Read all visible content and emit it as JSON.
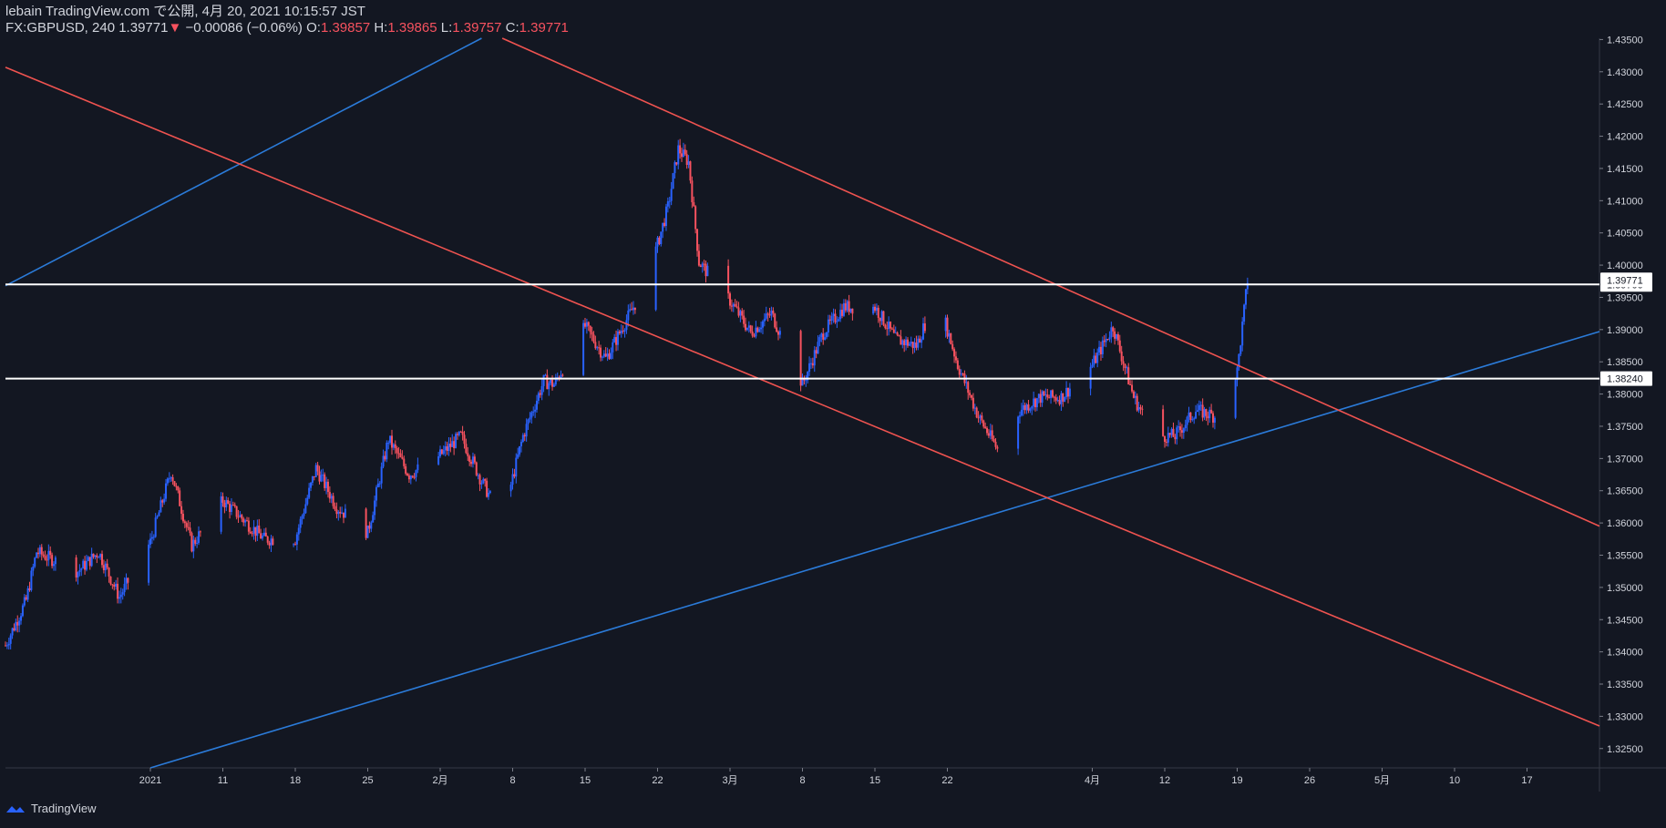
{
  "header": {
    "publish_line": "lebain TradingView.com で公開, 4月 20, 2021 10:15:57 JST",
    "symbol": "FX:GBPUSD, 240",
    "last": "1.39771",
    "change": "−0.00086 (−0.06%)",
    "o_label": "O:",
    "o_value": "1.39857",
    "h_label": "H:",
    "h_value": "1.39865",
    "l_label": "L:",
    "l_value": "1.39757",
    "c_label": "C:",
    "c_value": "1.39771"
  },
  "footer": {
    "brand": "TradingView"
  },
  "colors": {
    "bg": "#131722",
    "up": "#2962ff",
    "down": "#f7525f",
    "hline": "#ffffff",
    "blue_line": "#2b7bd9",
    "red_line": "#ef5350"
  },
  "chart_data": {
    "type": "candlestick",
    "symbol": "GBPUSD",
    "timeframe": "240",
    "ylim": [
      1.322,
      1.4352
    ],
    "y_ticks": [
      "1.43500",
      "1.43000",
      "1.42500",
      "1.42000",
      "1.41500",
      "1.41000",
      "1.40500",
      "1.40000",
      "1.39500",
      "1.39000",
      "1.38500",
      "1.38000",
      "1.37500",
      "1.37000",
      "1.36500",
      "1.36000",
      "1.35500",
      "1.35000",
      "1.34500",
      "1.34000",
      "1.33500",
      "1.33000",
      "1.32500"
    ],
    "y_tick_values": [
      1.435,
      1.43,
      1.425,
      1.42,
      1.415,
      1.41,
      1.405,
      1.4,
      1.395,
      1.39,
      1.385,
      1.38,
      1.375,
      1.37,
      1.365,
      1.36,
      1.355,
      1.35,
      1.345,
      1.34,
      1.335,
      1.33,
      1.325
    ],
    "x_labels": [
      "2021",
      "11",
      "18",
      "25",
      "2月",
      "8",
      "15",
      "22",
      "3月",
      "8",
      "15",
      "22",
      "4月",
      "12",
      "19",
      "26",
      "5月",
      "10",
      "17"
    ],
    "x_label_dates": [
      "2021-01-04",
      "2021-01-11",
      "2021-01-18",
      "2021-01-25",
      "2021-02-01",
      "2021-02-08",
      "2021-02-15",
      "2021-02-22",
      "2021-03-01",
      "2021-03-08",
      "2021-03-15",
      "2021-03-22",
      "2021-04-05",
      "2021-04-12",
      "2021-04-19",
      "2021-04-26",
      "2021-05-03",
      "2021-05-10",
      "2021-05-17"
    ],
    "xlim": [
      "2020-12-21",
      "2021-05-24"
    ],
    "close_path": [
      [
        "2020-12-21",
        1.341
      ],
      [
        "2020-12-23",
        1.348
      ],
      [
        "2020-12-24",
        1.3555
      ],
      [
        "2020-12-28",
        1.3525
      ],
      [
        "2020-12-30",
        1.3555
      ],
      [
        "2021-01-01",
        1.3485
      ],
      [
        "2021-01-04",
        1.357
      ],
      [
        "2021-01-06",
        1.368
      ],
      [
        "2021-01-08",
        1.3565
      ],
      [
        "2021-01-11",
        1.3635
      ],
      [
        "2021-01-13",
        1.3605
      ],
      [
        "2021-01-15",
        1.3575
      ],
      [
        "2021-01-18",
        1.3575
      ],
      [
        "2021-01-20",
        1.3685
      ],
      [
        "2021-01-22",
        1.3625
      ],
      [
        "2021-01-25",
        1.3585
      ],
      [
        "2021-01-27",
        1.373
      ],
      [
        "2021-01-29",
        1.3675
      ],
      [
        "2021-02-01",
        1.3705
      ],
      [
        "2021-02-03",
        1.3735
      ],
      [
        "2021-02-05",
        1.3665
      ],
      [
        "2021-02-07",
        1.3605
      ],
      [
        "2021-02-09",
        1.3735
      ],
      [
        "2021-02-11",
        1.382
      ],
      [
        "2021-02-12",
        1.3815
      ],
      [
        "2021-02-15",
        1.3905
      ],
      [
        "2021-02-17",
        1.3855
      ],
      [
        "2021-02-19",
        1.3915
      ],
      [
        "2021-02-21",
        1.3975
      ],
      [
        "2021-02-23",
        1.409
      ],
      [
        "2021-02-24",
        1.418
      ],
      [
        "2021-02-25",
        1.416
      ],
      [
        "2021-02-26",
        1.4005
      ],
      [
        "2021-03-01",
        1.3945
      ],
      [
        "2021-03-03",
        1.3895
      ],
      [
        "2021-03-05",
        1.3925
      ],
      [
        "2021-03-08",
        1.3815
      ],
      [
        "2021-03-10",
        1.3895
      ],
      [
        "2021-03-12",
        1.3935
      ],
      [
        "2021-03-15",
        1.3935
      ],
      [
        "2021-03-17",
        1.3885
      ],
      [
        "2021-03-19",
        1.3875
      ],
      [
        "2021-03-21",
        1.3955
      ],
      [
        "2021-03-23",
        1.3845
      ],
      [
        "2021-03-25",
        1.3765
      ],
      [
        "2021-03-27",
        1.371
      ],
      [
        "2021-03-29",
        1.3775
      ],
      [
        "2021-03-31",
        1.3795
      ],
      [
        "2021-04-02",
        1.3795
      ],
      [
        "2021-04-05",
        1.3845
      ],
      [
        "2021-04-07",
        1.3905
      ],
      [
        "2021-04-09",
        1.3795
      ],
      [
        "2021-04-11",
        1.3735
      ],
      [
        "2021-04-13",
        1.3735
      ],
      [
        "2021-04-15",
        1.3775
      ],
      [
        "2021-04-17",
        1.3765
      ],
      [
        "2021-04-19",
        1.3835
      ],
      [
        "2021-04-20",
        1.3977
      ]
    ],
    "horizontal_lines": [
      {
        "value": 1.397,
        "label": "1.39700"
      },
      {
        "value": 1.3824,
        "label": "1.38240"
      }
    ],
    "last_price_label": "1.39771",
    "last_price": 1.39771,
    "trend_lines": [
      {
        "color": "blue",
        "from": [
          "2020-12-21",
          1.3968
        ],
        "to": [
          "2021-02-05",
          1.4352
        ]
      },
      {
        "color": "blue",
        "from": [
          "2021-01-04",
          1.322
        ],
        "to": [
          "2021-05-24",
          1.3897
        ]
      },
      {
        "color": "red",
        "from": [
          "2020-12-21",
          1.4307
        ],
        "to": [
          "2021-05-24",
          1.3285
        ]
      },
      {
        "color": "red",
        "from": [
          "2021-02-07",
          1.4352
        ],
        "to": [
          "2021-05-24",
          1.3595
        ]
      }
    ]
  }
}
